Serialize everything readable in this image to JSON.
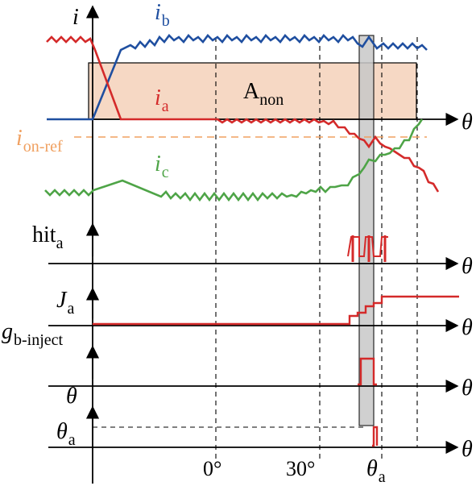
{
  "labels": {
    "i_symbol": "i",
    "ib_main": "i",
    "ib_sub": "b",
    "ia_main": "i",
    "ia_sub": "a",
    "ic_main": "i",
    "ic_sub": "c",
    "area_main": "A",
    "area_sub": "non",
    "ref_main": "i",
    "ref_sub": "on-ref",
    "theta": "θ",
    "hit_main": "hit",
    "hit_sub": "a",
    "J_main": "J",
    "J_sub": "a",
    "g_main": "g",
    "g_sub": "b-inject",
    "theta_a_main": "θ",
    "theta_a_sub": "a",
    "tick_0": "0°",
    "tick_30": "30°",
    "tick_theta_a_main": "θ",
    "tick_theta_a_sub": "a"
  },
  "colors": {
    "ia": "#d42a2a",
    "ib": "#1f4fa0",
    "ic": "#4ea447",
    "ref": "#f0a060",
    "area_fill": "#f6d8c4",
    "highlight": "#c8c8c8"
  }
}
